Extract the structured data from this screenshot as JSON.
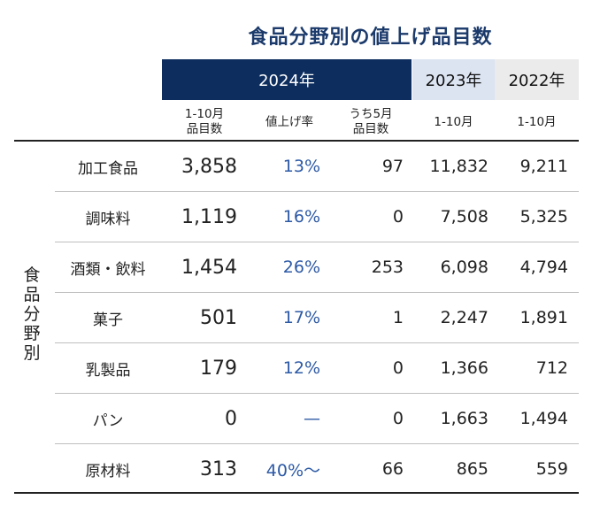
{
  "title": "食品分野別の値上げ品目数",
  "headers": {
    "y2024": "2024年",
    "y2023": "2023年",
    "y2022": "2022年"
  },
  "subheaders": {
    "count_2024": "1-10月\n品目数",
    "rate_2024": "値上げ率",
    "may_2024": "うち5月\n品目数",
    "period_2023": "1-10月",
    "period_2022": "1-10月"
  },
  "side_label": "食\n品\n分\n野\n別",
  "rows": [
    {
      "label": "加工食品",
      "count": "3,858",
      "rate": "13%",
      "may": "97",
      "y2023": "11,832",
      "y2022": "9,211"
    },
    {
      "label": "調味料",
      "count": "1,119",
      "rate": "16%",
      "may": "0",
      "y2023": "7,508",
      "y2022": "5,325"
    },
    {
      "label": "酒類・飲料",
      "count": "1,454",
      "rate": "26%",
      "may": "253",
      "y2023": "6,098",
      "y2022": "4,794"
    },
    {
      "label": "菓子",
      "count": "501",
      "rate": "17%",
      "may": "1",
      "y2023": "2,247",
      "y2022": "1,891"
    },
    {
      "label": "乳製品",
      "count": "179",
      "rate": "12%",
      "may": "0",
      "y2023": "1,366",
      "y2022": "712"
    },
    {
      "label": "パン",
      "count": "0",
      "rate": "—",
      "may": "0",
      "y2023": "1,663",
      "y2022": "1,494"
    },
    {
      "label": "原材料",
      "count": "313",
      "rate": "40%～",
      "may": "66",
      "y2023": "865",
      "y2022": "559"
    }
  ],
  "colors": {
    "header_2024": "#0d2d5e",
    "header_2023": "#dce4f2",
    "header_2022": "#ebebeb",
    "rate_text": "#2d5aa6",
    "title_text": "#1b3a6b"
  }
}
